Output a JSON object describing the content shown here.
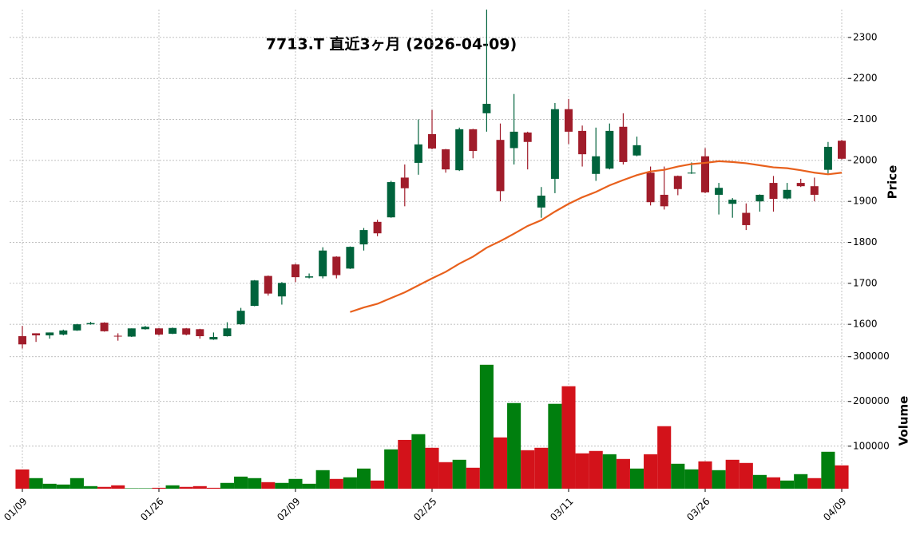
{
  "chart_data": {
    "type": "candlestick",
    "title": "7713.T  直近3ヶ月  (2026-04-09)",
    "ylabel": "Price",
    "volume_ylabel": "Volume",
    "categories": [
      "01/09",
      null,
      null,
      null,
      null,
      null,
      null,
      null,
      null,
      null,
      "01/26",
      null,
      null,
      null,
      null,
      null,
      null,
      null,
      null,
      null,
      "02/09",
      null,
      null,
      null,
      null,
      null,
      null,
      null,
      null,
      null,
      "02/25",
      null,
      null,
      null,
      null,
      null,
      null,
      null,
      null,
      null,
      "03/11",
      null,
      null,
      null,
      null,
      null,
      null,
      null,
      null,
      null,
      "03/26",
      null,
      null,
      null,
      null,
      null,
      null,
      null,
      null,
      null,
      "04/09"
    ],
    "open": [
      1571,
      1578,
      1573,
      1575,
      1585,
      1600,
      1604,
      1572,
      1570,
      1588,
      1590,
      1577,
      1590,
      1588,
      1563,
      1571,
      1600,
      1645,
      1718,
      1668,
      1746,
      1714,
      1717,
      1765,
      1736,
      1795,
      1850,
      1861,
      1958,
      1994,
      2064,
      2027,
      1976,
      2076,
      2115,
      2050,
      2030,
      2068,
      1885,
      1955,
      2125,
      2072,
      1967,
      1980,
      2082,
      2012,
      1970,
      1916,
      1962,
      1968,
      2010,
      1916,
      1894,
      1872,
      1900,
      1945,
      1907,
      1945,
      1937,
      1977,
      2048
    ],
    "high": [
      1596,
      1578,
      1580,
      1587,
      1601,
      1606,
      1605,
      1578,
      1590,
      1596,
      1591,
      1592,
      1591,
      1589,
      1580,
      1605,
      1640,
      1708,
      1719,
      1703,
      1748,
      1724,
      1788,
      1766,
      1790,
      1835,
      1855,
      1950,
      1990,
      2100,
      2123,
      2028,
      2080,
      2077,
      2368,
      2090,
      2162,
      2070,
      1935,
      2140,
      2150,
      2085,
      2080,
      2090,
      2115,
      2058,
      1985,
      1985,
      1963,
      1995,
      2030,
      1945,
      1908,
      1895,
      1917,
      1962,
      1945,
      1955,
      1958,
      2045,
      2050
    ],
    "low": [
      1541,
      1557,
      1565,
      1573,
      1584,
      1599,
      1582,
      1560,
      1569,
      1587,
      1573,
      1576,
      1573,
      1565,
      1562,
      1570,
      1599,
      1644,
      1670,
      1648,
      1703,
      1712,
      1712,
      1712,
      1735,
      1780,
      1815,
      1860,
      1888,
      1965,
      2027,
      1970,
      1974,
      2005,
      2070,
      1900,
      1990,
      1978,
      1860,
      1920,
      2040,
      1985,
      1950,
      1978,
      1990,
      2010,
      1890,
      1880,
      1915,
      1967,
      1920,
      1868,
      1860,
      1830,
      1875,
      1875,
      1905,
      1935,
      1900,
      1968,
      2002
    ],
    "close": [
      1551,
      1573,
      1580,
      1585,
      1600,
      1603,
      1583,
      1570,
      1590,
      1594,
      1575,
      1591,
      1575,
      1571,
      1569,
      1590,
      1633,
      1707,
      1675,
      1701,
      1715,
      1717,
      1780,
      1720,
      1789,
      1830,
      1822,
      1947,
      1932,
      2039,
      2029,
      1978,
      2076,
      2023,
      2138,
      1925,
      2070,
      2045,
      1914,
      2125,
      2070,
      2015,
      2010,
      2072,
      1996,
      2037,
      1898,
      1888,
      1930,
      1970,
      1922,
      1933,
      1904,
      1842,
      1916,
      1906,
      1928,
      1937,
      1916,
      2033,
      2004
    ],
    "up_color": "#00633c",
    "down_color": "#a01c2a",
    "ma": {
      "color": "#e8601c",
      "values": [
        null,
        null,
        null,
        null,
        null,
        null,
        null,
        null,
        null,
        null,
        null,
        null,
        null,
        null,
        null,
        null,
        null,
        null,
        null,
        null,
        null,
        null,
        null,
        null,
        1630,
        1641,
        1650,
        1664,
        1678,
        1695,
        1712,
        1728,
        1748,
        1765,
        1787,
        1803,
        1821,
        1840,
        1854,
        1875,
        1894,
        1910,
        1923,
        1939,
        1952,
        1964,
        1973,
        1977,
        1985,
        1991,
        1994,
        1998,
        1996,
        1993,
        1988,
        1983,
        1981,
        1976,
        1970,
        1966,
        1970
      ]
    },
    "volume": {
      "values": [
        48000,
        28600,
        16000,
        14300,
        28600,
        10700,
        9000,
        12500,
        6000,
        6000,
        7000,
        12500,
        9000,
        10700,
        7000,
        17900,
        32000,
        28600,
        19600,
        17900,
        26800,
        16000,
        46400,
        26800,
        30400,
        50000,
        23200,
        92900,
        114000,
        126800,
        96400,
        64300,
        69600,
        51800,
        282000,
        119600,
        196400,
        91000,
        96400,
        194700,
        234000,
        84000,
        89300,
        82000,
        71400,
        50000,
        82000,
        144700,
        60700,
        48200,
        66100,
        46400,
        69600,
        62500,
        35700,
        30400,
        23200,
        37500,
        28600,
        87500,
        57100
      ],
      "colors": [
        "#d3121a",
        "#007f0e",
        "#007f0e",
        "#007f0e",
        "#007f0e",
        "#007f0e",
        "#d3121a",
        "#d3121a",
        "#007f0e",
        "#007f0e",
        "#d3121a",
        "#007f0e",
        "#d3121a",
        "#d3121a",
        "#d3121a",
        "#007f0e",
        "#007f0e",
        "#007f0e",
        "#d3121a",
        "#007f0e",
        "#007f0e",
        "#007f0e",
        "#007f0e",
        "#d3121a",
        "#007f0e",
        "#007f0e",
        "#d3121a",
        "#007f0e",
        "#d3121a",
        "#007f0e",
        "#d3121a",
        "#d3121a",
        "#007f0e",
        "#d3121a",
        "#007f0e",
        "#d3121a",
        "#007f0e",
        "#d3121a",
        "#d3121a",
        "#007f0e",
        "#d3121a",
        "#d3121a",
        "#d3121a",
        "#007f0e",
        "#d3121a",
        "#007f0e",
        "#d3121a",
        "#d3121a",
        "#007f0e",
        "#007f0e",
        "#d3121a",
        "#007f0e",
        "#d3121a",
        "#d3121a",
        "#007f0e",
        "#d3121a",
        "#007f0e",
        "#007f0e",
        "#d3121a",
        "#007f0e",
        "#d3121a"
      ]
    },
    "ylim": [
      1534,
      2368
    ],
    "yticks": [
      1600,
      1700,
      1800,
      1900,
      2000,
      2100,
      2200,
      2300
    ],
    "volume_ylim": [
      5000,
      312000
    ],
    "volume_yticks": [
      100000,
      200000,
      300000
    ],
    "grid": true
  }
}
